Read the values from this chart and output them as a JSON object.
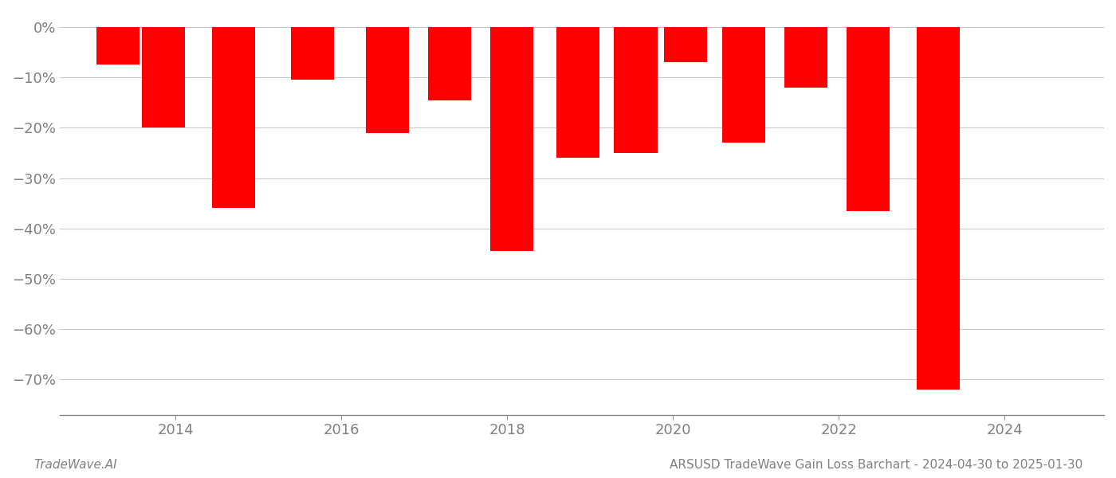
{
  "years": [
    2013.3,
    2013.85,
    2014.7,
    2015.65,
    2016.55,
    2017.3,
    2018.05,
    2018.85,
    2019.55,
    2020.15,
    2020.85,
    2021.6,
    2022.35,
    2023.2
  ],
  "values": [
    -7.5,
    -20.0,
    -36.0,
    -10.5,
    -21.0,
    -14.5,
    -44.5,
    -26.0,
    -25.0,
    -7.0,
    -23.0,
    -12.0,
    -36.5,
    -72.0
  ],
  "bar_color": "#ff0000",
  "background_color": "#ffffff",
  "grid_color": "#c8c8c8",
  "axis_label_color": "#808080",
  "yticks": [
    0,
    -10,
    -20,
    -30,
    -40,
    -50,
    -60,
    -70
  ],
  "xticks": [
    2014,
    2016,
    2018,
    2020,
    2022,
    2024
  ],
  "xlim": [
    2012.6,
    2025.2
  ],
  "ylim": [
    -77,
    3
  ],
  "title": "ARSUSD TradeWave Gain Loss Barchart - 2024-04-30 to 2025-01-30",
  "footer_left": "TradeWave.AI",
  "bar_width": 0.52
}
